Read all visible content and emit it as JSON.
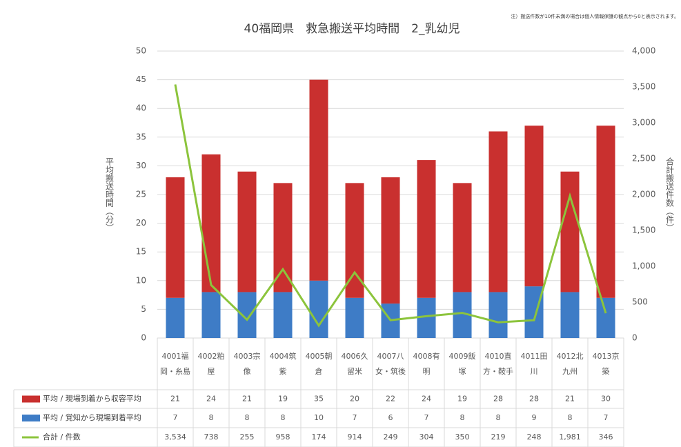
{
  "chart_data": {
    "type": "bar",
    "title": "40福岡県　救急搬送平均時間　2_乳幼児",
    "note": "注）搬送件数が10件未満の場合は個人情報保護の観点から0と表示されます。",
    "y_label": "平均搬送時間（分）",
    "y2_label": "合計搬送件数（件）",
    "stacked": true,
    "grid": true,
    "categories": [
      "4001福岡・糸島",
      "4002粕屋",
      "4003宗像",
      "4004筑紫",
      "4005朝倉",
      "4006久留米",
      "4007八女・筑後",
      "4008有明",
      "4009飯塚",
      "4010直方・鞍手",
      "4011田川",
      "4012北九州",
      "4013京築"
    ],
    "series": [
      {
        "name": "平均 / 覚知から現場到着平均",
        "color": "#3e7cc6",
        "type": "bar",
        "values": [
          7,
          8,
          8,
          8,
          10,
          7,
          6,
          7,
          8,
          8,
          9,
          8,
          7
        ]
      },
      {
        "name": "平均 / 現場到着から収容平均",
        "color": "#c9302f",
        "type": "bar",
        "values": [
          21,
          24,
          21,
          19,
          35,
          20,
          22,
          24,
          19,
          28,
          28,
          21,
          30
        ]
      },
      {
        "name": "合計 / 件数",
        "color": "#8cc43c",
        "type": "line",
        "axis": "y2",
        "values": [
          3534,
          738,
          255,
          958,
          174,
          914,
          249,
          304,
          350,
          219,
          248,
          1981,
          346
        ],
        "value_labels": [
          "3,534",
          "738",
          "255",
          "958",
          "174",
          "914",
          "249",
          "304",
          "350",
          "219",
          "248",
          "1,981",
          "346"
        ]
      }
    ],
    "ylim": [
      0,
      50
    ],
    "yticks": [
      0,
      5,
      10,
      15,
      20,
      25,
      30,
      35,
      40,
      45,
      50
    ],
    "y2lim": [
      0,
      4000
    ],
    "y2ticks": [
      0,
      500,
      {
        "value": 1000,
        "label": "1,000"
      },
      {
        "value": 1500,
        "label": "1,500"
      },
      {
        "value": 2000,
        "label": "2,000"
      },
      {
        "value": 2500,
        "label": "2,500"
      },
      {
        "value": 3000,
        "label": "3,000"
      },
      {
        "value": 3500,
        "label": "3,500"
      },
      {
        "value": 4000,
        "label": "4,000"
      }
    ]
  }
}
